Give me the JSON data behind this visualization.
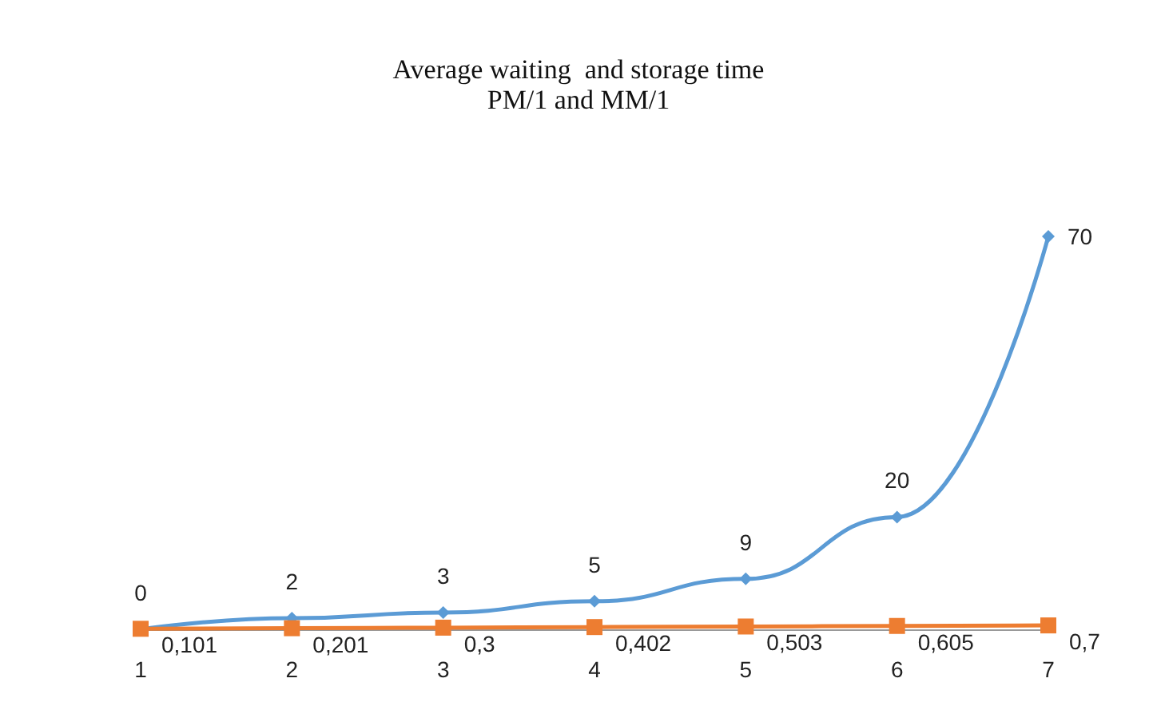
{
  "chart_data": {
    "type": "line",
    "title": "Average waiting  and storage time",
    "subtitle": "PM/1 and MM/1",
    "categories": [
      "1",
      "2",
      "3",
      "4",
      "5",
      "6",
      "7"
    ],
    "series": [
      {
        "color": "#5b9bd5",
        "marker": "diamond",
        "values": [
          0,
          2,
          3,
          5,
          9,
          20,
          70
        ],
        "value_labels": [
          "0",
          "2",
          "3",
          "5",
          "9",
          "20",
          "70"
        ]
      },
      {
        "color": "#ed7d31",
        "marker": "square",
        "values": [
          0.101,
          0.201,
          0.3,
          0.402,
          0.503,
          0.605,
          0.7
        ],
        "value_labels": [
          "0,101",
          "0,201",
          "0,3",
          "0,402",
          "0,503",
          "0,605",
          "0,7"
        ]
      }
    ],
    "grid": false
  }
}
